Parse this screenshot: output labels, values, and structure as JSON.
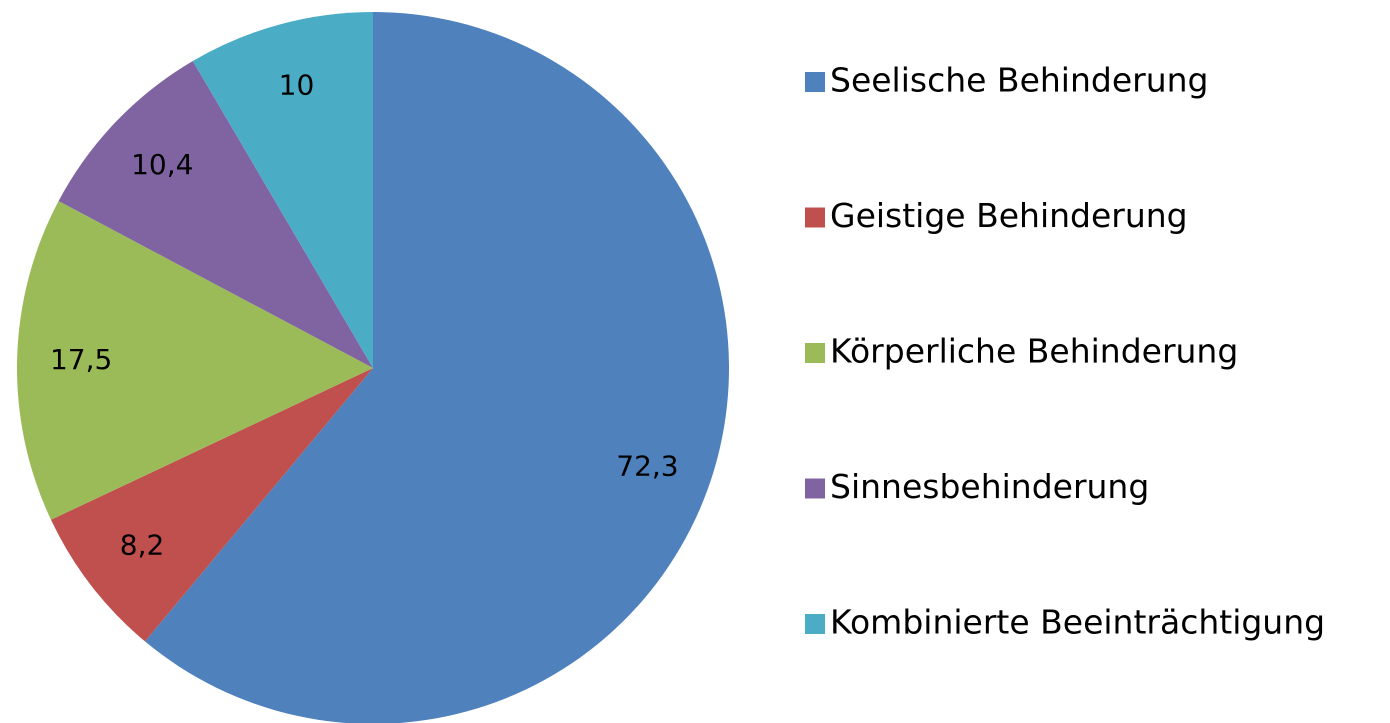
{
  "chart_data": {
    "type": "pie",
    "categories": [
      "Seelische Behinderung",
      "Geistige Behinderung",
      "Körperliche Behinderung",
      "Sinnesbehinderung",
      "Kombinierte Beeinträchtigung"
    ],
    "values": [
      72.3,
      8.2,
      17.5,
      10.4,
      10
    ],
    "value_labels": [
      "72,3",
      "8,2",
      "17,5",
      "10,4",
      "10"
    ],
    "colors": [
      "#4f81bd",
      "#c0504d",
      "#9bbb59",
      "#8064a2",
      "#4bacc6"
    ],
    "legend": "right"
  }
}
